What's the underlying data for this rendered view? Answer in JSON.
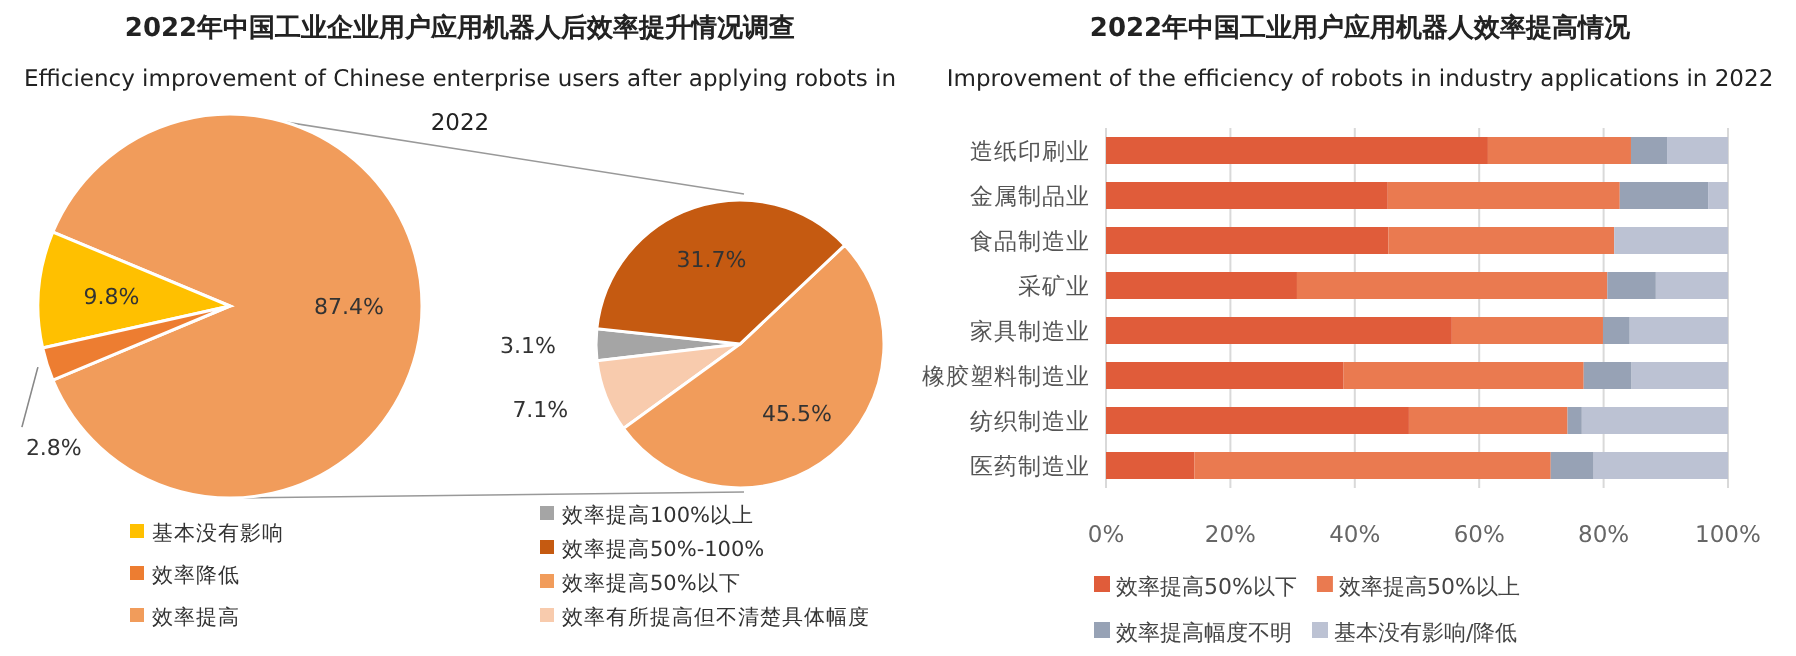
{
  "chart_data": [
    {
      "type": "pie",
      "title": "2022年中国工业企业用户应用机器人后效率提升情况调查",
      "subtitle": "Efficiency improvement of Chinese enterprise users after applying robots in 2022",
      "categories": [
        "基本没有影响",
        "效率降低",
        "效率提高"
      ],
      "values": [
        9.8,
        2.8,
        87.4
      ],
      "colors": [
        "#ffc000",
        "#ed7d31",
        "#f19c5b"
      ],
      "value_labels": [
        "9.8%",
        "2.8%",
        "87.4%"
      ],
      "legend": "bottom"
    },
    {
      "type": "pie",
      "categories": [
        "效率提高100%以上",
        "效率提高50%-100%",
        "效率提高50%以下",
        "效率有所提高但不清楚具体幅度"
      ],
      "values": [
        3.1,
        31.7,
        45.5,
        7.1
      ],
      "colors": [
        "#a5a5a5",
        "#c55a11",
        "#f19c5b",
        "#f8cbad"
      ],
      "value_labels": [
        "3.1%",
        "31.7%",
        "45.5%",
        "7.1%"
      ],
      "legend": "bottom"
    },
    {
      "type": "bar",
      "orientation": "horizontal",
      "stacked": true,
      "title": "2022年中国工业用户应用机器人效率提高情况",
      "subtitle": "Improvement of the efficiency of robots in industry applications in 2022",
      "categories": [
        "造纸印刷业",
        "金属制品业",
        "食品制造业",
        "采矿业",
        "家具制造业",
        "橡胶塑料制造业",
        "纺织制造业",
        "医药制造业"
      ],
      "series": [
        {
          "name": "效率提高50%以下",
          "color": "#e05c3a",
          "values": [
            61.4,
            45.3,
            45.4,
            30.7,
            55.6,
            38.2,
            48.7,
            14.2
          ]
        },
        {
          "name": "效率提高50%以上",
          "color": "#ea7a50",
          "values": [
            23.0,
            37.3,
            36.3,
            49.9,
            24.3,
            38.6,
            25.5,
            57.3
          ]
        },
        {
          "name": "效率提高幅度不明",
          "color": "#97a2b5",
          "values": [
            5.8,
            14.2,
            0,
            7.8,
            4.3,
            7.7,
            2.3,
            6.9
          ]
        },
        {
          "name": "基本没有影响/降低",
          "color": "#bcc2d3",
          "values": [
            9.8,
            3.2,
            18.3,
            11.6,
            15.8,
            15.5,
            23.5,
            21.6
          ]
        }
      ],
      "xlim": [
        0,
        100
      ],
      "xticks": [
        {
          "value": 0,
          "label": "0%"
        },
        {
          "value": 20,
          "label": "20%"
        },
        {
          "value": 40,
          "label": "40%"
        },
        {
          "value": 60,
          "label": "60%"
        },
        {
          "value": 80,
          "label": "80%"
        },
        {
          "value": 100,
          "label": "100%"
        }
      ],
      "grid": "x",
      "legend": "bottom"
    }
  ]
}
